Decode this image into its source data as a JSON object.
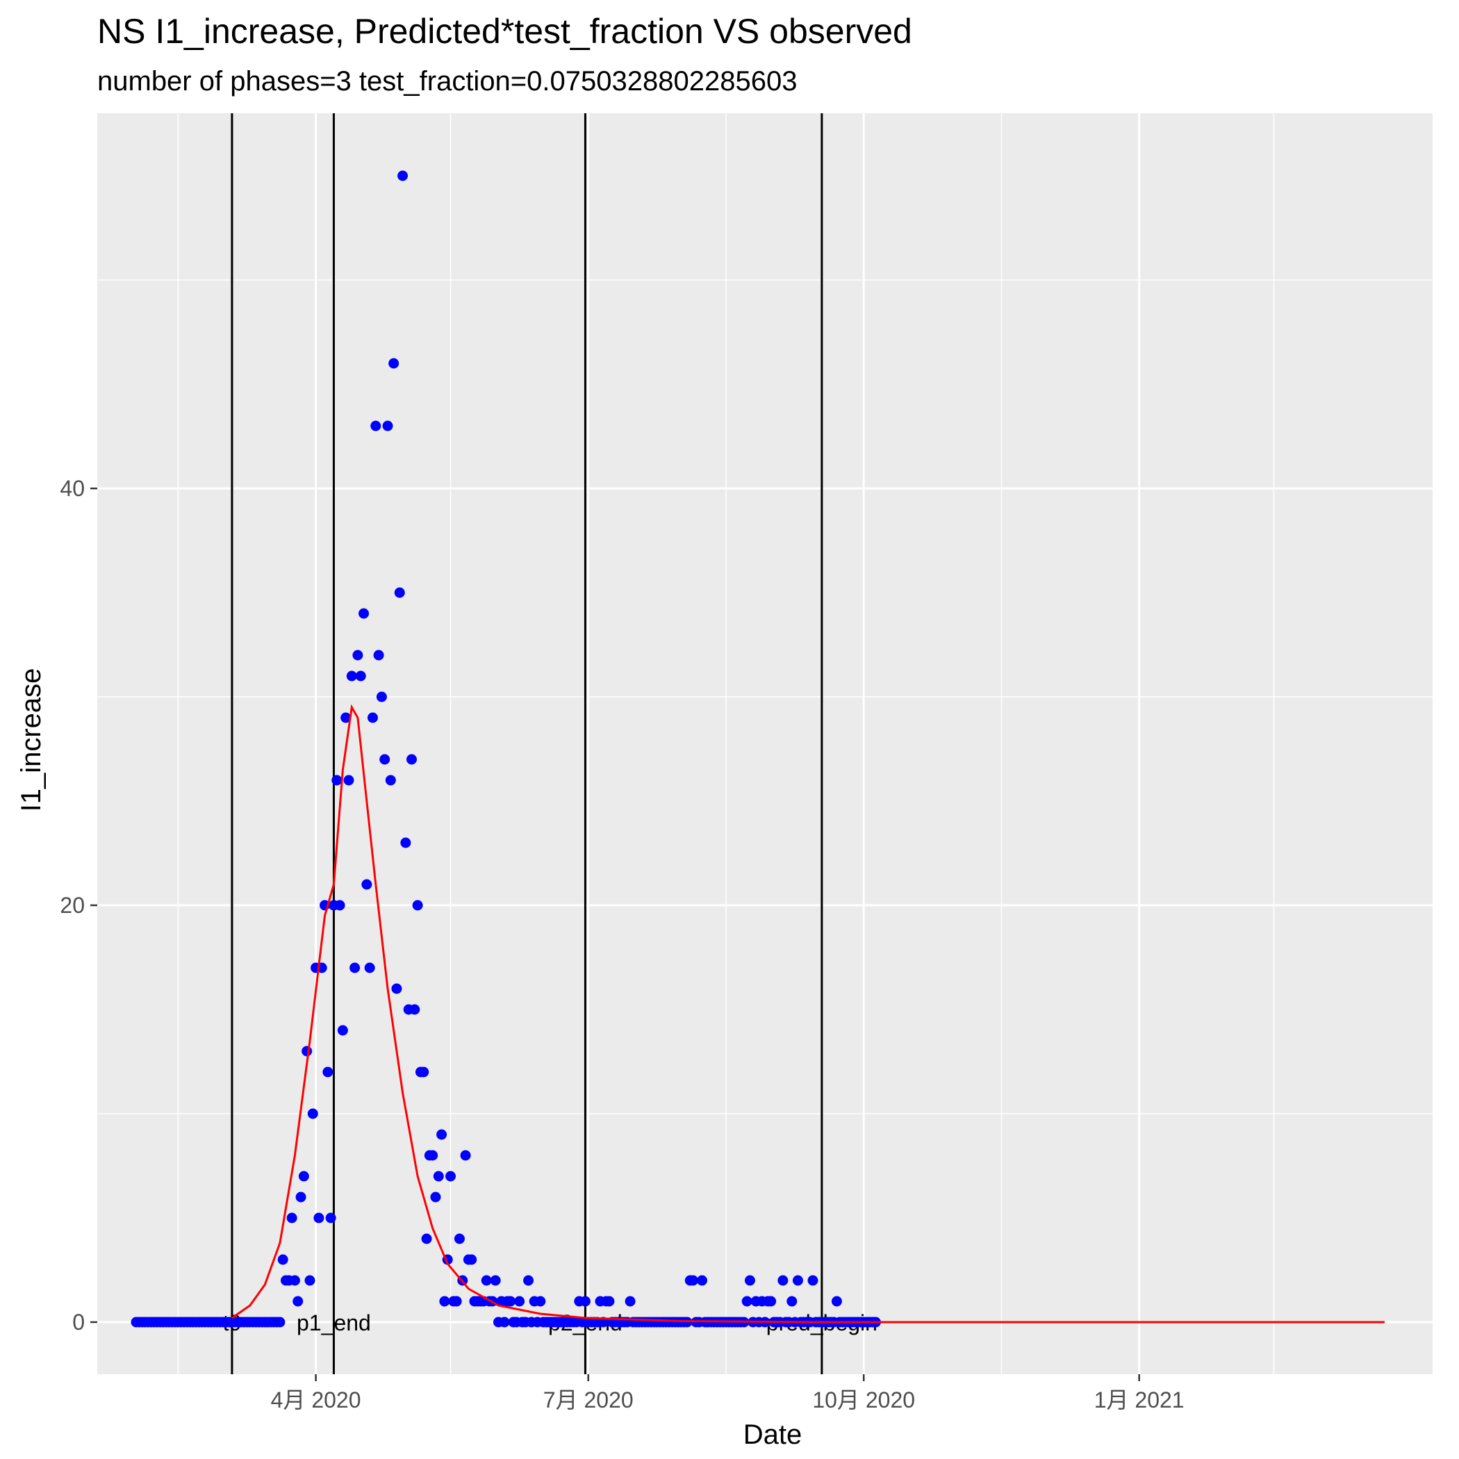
{
  "chart_data": {
    "type": "scatter",
    "title": "NS I1_increase, Predicted*test_fraction VS observed",
    "subtitle": "number of phases=3   test_fraction=0.0750328802285603",
    "xlabel": "Date",
    "ylabel": "I1_increase",
    "xlim": [
      "2020-01-19",
      "2021-04-09"
    ],
    "ylim": [
      -2.5,
      58
    ],
    "x_ticks": [
      {
        "date": "2020-04-01",
        "label": "4月 2020"
      },
      {
        "date": "2020-07-01",
        "label": "7月 2020"
      },
      {
        "date": "2020-10-01",
        "label": "10月 2020"
      },
      {
        "date": "2021-01-01",
        "label": "1月 2021"
      }
    ],
    "x_minor_ticks": [
      "2020-02-15",
      "2020-05-16",
      "2020-08-16",
      "2020-11-16",
      "2021-02-15"
    ],
    "y_ticks": [
      0,
      20,
      40
    ],
    "y_minor_ticks": [
      10,
      30,
      50
    ],
    "grid": true,
    "colors": {
      "panel": "#ebebeb",
      "grid": "#ffffff",
      "points": "#0000ff",
      "fit_line": "#ff0000",
      "vlines": "#000000"
    },
    "vlines": [
      {
        "date": "2020-03-04",
        "label": "t0"
      },
      {
        "date": "2020-04-07",
        "label": "p1_end"
      },
      {
        "date": "2020-06-30",
        "label": "p2_end"
      },
      {
        "date": "2020-09-17",
        "label": "pred_begin"
      }
    ],
    "series": [
      {
        "kind": "points",
        "start_date": "2020-02-01",
        "values": [
          0,
          0,
          0,
          0,
          0,
          0,
          0,
          0,
          0,
          0,
          0,
          0,
          0,
          0,
          0,
          0,
          0,
          0,
          0,
          0,
          0,
          0,
          0,
          0,
          0,
          0,
          0,
          0,
          0,
          0,
          0,
          0,
          0,
          0,
          0,
          0,
          0,
          0,
          0,
          0,
          0,
          0,
          0,
          0,
          0,
          0,
          0,
          0,
          0,
          3,
          2,
          2,
          5,
          2,
          1,
          6,
          7,
          13,
          2,
          10,
          17,
          5,
          17,
          20,
          12,
          5,
          20,
          26,
          20,
          14,
          29,
          26,
          31,
          17,
          32,
          31,
          34,
          21,
          17,
          29,
          43,
          32,
          30,
          27,
          43,
          26,
          46,
          16,
          35,
          55,
          23,
          15,
          27,
          15,
          20,
          12,
          12,
          4,
          8,
          8,
          6,
          7,
          9,
          1,
          3,
          7,
          1,
          1,
          4,
          2,
          8,
          3,
          3,
          1,
          1,
          1,
          1,
          2,
          1,
          1,
          2,
          0,
          1,
          0,
          1,
          1,
          0,
          0,
          1,
          0,
          0,
          2,
          0,
          1,
          0,
          1,
          0,
          0,
          0,
          0,
          0,
          0,
          0,
          0,
          0,
          0,
          0,
          0,
          1,
          0,
          1,
          0,
          0,
          0,
          0,
          1,
          0,
          1,
          1,
          0,
          0,
          0,
          0,
          0,
          0,
          1,
          0,
          0,
          0,
          0,
          0,
          0,
          0,
          0,
          0,
          0,
          0,
          0,
          0,
          0,
          0,
          0,
          0,
          0,
          0,
          2,
          2,
          0,
          0,
          2,
          0,
          0,
          0,
          0,
          0,
          0,
          0,
          0,
          0,
          0,
          0,
          0,
          0,
          0,
          1,
          2,
          0,
          1,
          0,
          1,
          0,
          1,
          1,
          0,
          0,
          0,
          2,
          0,
          0,
          1,
          0,
          2,
          0,
          0,
          0,
          0,
          2,
          0,
          0,
          0,
          0,
          0,
          0,
          0,
          1,
          0,
          0,
          0,
          0,
          0,
          0,
          0,
          0,
          0,
          0,
          0,
          0,
          0
        ]
      },
      {
        "kind": "line",
        "points": [
          [
            "2020-03-04",
            0.2
          ],
          [
            "2020-03-10",
            0.8
          ],
          [
            "2020-03-15",
            1.8
          ],
          [
            "2020-03-20",
            3.8
          ],
          [
            "2020-03-25",
            8
          ],
          [
            "2020-03-30",
            13.5
          ],
          [
            "2020-04-04",
            19.5
          ],
          [
            "2020-04-07",
            21
          ],
          [
            "2020-04-10",
            26.5
          ],
          [
            "2020-04-13",
            29.5
          ],
          [
            "2020-04-15",
            29
          ],
          [
            "2020-04-18",
            25
          ],
          [
            "2020-04-21",
            21
          ],
          [
            "2020-04-25",
            16
          ],
          [
            "2020-04-30",
            11
          ],
          [
            "2020-05-05",
            7
          ],
          [
            "2020-05-10",
            4.5
          ],
          [
            "2020-05-15",
            2.8
          ],
          [
            "2020-05-22",
            1.6
          ],
          [
            "2020-06-01",
            0.8
          ],
          [
            "2020-06-15",
            0.4
          ],
          [
            "2020-06-30",
            0.2
          ],
          [
            "2020-08-01",
            0.05
          ],
          [
            "2020-09-17",
            0
          ],
          [
            "2021-03-24",
            0
          ]
        ]
      }
    ]
  }
}
